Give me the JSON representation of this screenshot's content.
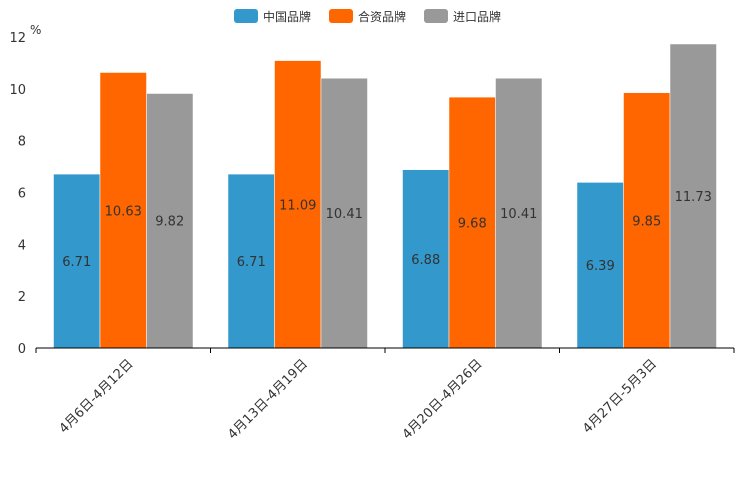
{
  "chart_data": {
    "type": "bar",
    "title": "",
    "xlabel": "",
    "ylabel": "%",
    "ylim": [
      0,
      12
    ],
    "yticks": [
      0,
      2,
      4,
      6,
      8,
      10,
      12
    ],
    "grid": false,
    "legend_position": "top-center",
    "categories": [
      "4月6日-4月12日",
      "4月13日-4月19日",
      "4月20日-4月26日",
      "4月27日-5月3日"
    ],
    "series": [
      {
        "name": "中国品牌",
        "color": "#3398cc",
        "values": [
          6.71,
          6.71,
          6.88,
          6.39
        ]
      },
      {
        "name": "合资品牌",
        "color": "#ff6600",
        "values": [
          10.63,
          11.09,
          9.68,
          9.85
        ]
      },
      {
        "name": "进口品牌",
        "color": "#999999",
        "values": [
          9.82,
          10.41,
          10.41,
          11.73
        ]
      }
    ]
  }
}
